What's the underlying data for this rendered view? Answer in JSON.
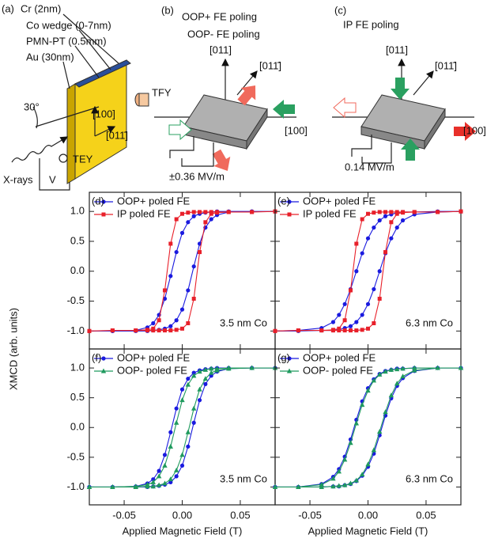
{
  "diagram": {
    "panel_a": {
      "label": "(a)",
      "layers": [
        "Cr (2nm)",
        "Co wedge (0-7nm)",
        "PMN-PT (0.5mm)",
        "Au (30nm)"
      ],
      "tfy": "TFY",
      "angle": "30°",
      "dir_100": "[100]",
      "dir_011bar": "[011̄]",
      "xrays": "X-rays",
      "voltage": "V",
      "tey": "TEY"
    },
    "panel_b": {
      "label": "(b)",
      "title_lines": [
        "OOP+ FE poling",
        "OOP- FE poling"
      ],
      "dir_011": "[011]",
      "dir_011bar": "[011̄]",
      "dir_100": "[100]",
      "field": "±0.36 MV/m"
    },
    "panel_c": {
      "label": "(c)",
      "title": "IP FE poling",
      "dir_011": "[011]",
      "dir_011bar": "[011̄]",
      "dir_100": "[100]",
      "field": "0.14 MV/m"
    }
  },
  "chart_data": [
    {
      "type": "line",
      "panel_label": "(d)",
      "annotation": "3.5 nm Co",
      "ylabel": "XMCD (arb. units)",
      "x": [
        0.08,
        0.06,
        0.04,
        0.03,
        0.025,
        0.02,
        0.015,
        0.01,
        0.005,
        0,
        -0.005,
        -0.01,
        -0.015,
        -0.02,
        -0.025,
        -0.03,
        -0.04,
        -0.06,
        -0.08,
        -0.08,
        -0.06,
        -0.04,
        -0.03,
        -0.025,
        -0.02,
        -0.015,
        -0.01,
        -0.005,
        0,
        0.005,
        0.01,
        0.015,
        0.02,
        0.025,
        0.03,
        0.04,
        0.06,
        0.08
      ],
      "series": [
        {
          "name": "OOP+ poled FE",
          "color": "#1a1adf",
          "marker": "circle",
          "values": [
            1,
            1,
            1,
            1,
            0.99,
            0.98,
            0.96,
            0.92,
            0.82,
            0.64,
            0.32,
            -0.08,
            -0.46,
            -0.73,
            -0.87,
            -0.94,
            -0.99,
            -1,
            -1,
            -1,
            -1,
            -1,
            -1,
            -0.99,
            -0.98,
            -0.96,
            -0.92,
            -0.82,
            -0.64,
            -0.32,
            0.08,
            0.46,
            0.73,
            0.87,
            0.94,
            0.99,
            1,
            1
          ]
        },
        {
          "name": "IP poled FE",
          "color": "#e8202a",
          "marker": "square",
          "values": [
            1,
            0.99,
            0.99,
            0.99,
            0.99,
            0.99,
            0.99,
            0.99,
            0.98,
            0.96,
            0.87,
            0.46,
            -0.32,
            -0.82,
            -0.96,
            -0.98,
            -0.99,
            -0.99,
            -1,
            -1,
            -0.99,
            -0.99,
            -0.99,
            -0.99,
            -0.99,
            -0.99,
            -0.99,
            -0.98,
            -0.96,
            -0.87,
            -0.46,
            0.32,
            0.82,
            0.96,
            0.98,
            0.99,
            0.99,
            1
          ]
        }
      ],
      "xlim": [
        -0.08,
        0.08
      ],
      "ylim": [
        -1.3,
        1.32
      ],
      "xticks": [
        -0.05,
        0,
        0.05
      ],
      "yticks": [
        {
          "value": -1,
          "label": "-1.0"
        },
        -0.5,
        {
          "value": 0,
          "label": "0.0"
        },
        0.5,
        {
          "value": 1,
          "label": "1.0"
        }
      ]
    },
    {
      "type": "line",
      "panel_label": "(e)",
      "annotation": "6.3 nm Co",
      "x": [
        0.08,
        0.06,
        0.04,
        0.03,
        0.025,
        0.02,
        0.015,
        0.01,
        0.005,
        0,
        -0.005,
        -0.01,
        -0.015,
        -0.02,
        -0.025,
        -0.03,
        -0.04,
        -0.06,
        -0.08,
        -0.08,
        -0.06,
        -0.04,
        -0.03,
        -0.025,
        -0.02,
        -0.015,
        -0.01,
        -0.005,
        0,
        0.005,
        0.01,
        0.015,
        0.02,
        0.025,
        0.03,
        0.04,
        0.06,
        0.08
      ],
      "series": [
        {
          "name": "OOP+ poled FE",
          "color": "#1a1adf",
          "marker": "circle",
          "values": [
            1,
            1,
            0.99,
            0.99,
            0.98,
            0.95,
            0.92,
            0.85,
            0.73,
            0.55,
            0.3,
            0,
            -0.3,
            -0.55,
            -0.73,
            -0.85,
            -0.95,
            -0.99,
            -1,
            -1,
            -1,
            -0.99,
            -0.99,
            -0.98,
            -0.95,
            -0.92,
            -0.85,
            -0.73,
            -0.55,
            -0.3,
            0,
            0.3,
            0.55,
            0.73,
            0.85,
            0.95,
            0.99,
            1
          ]
        },
        {
          "name": "IP poled FE",
          "color": "#e8202a",
          "marker": "square",
          "values": [
            1,
            0.99,
            0.99,
            0.99,
            0.99,
            0.99,
            0.99,
            0.99,
            0.98,
            0.96,
            0.87,
            0.46,
            -0.32,
            -0.82,
            -0.96,
            -0.98,
            -0.99,
            -0.99,
            -1,
            -1,
            -0.99,
            -0.99,
            -0.99,
            -0.99,
            -0.99,
            -0.99,
            -0.99,
            -0.98,
            -0.96,
            -0.87,
            -0.46,
            0.32,
            0.82,
            0.96,
            0.98,
            0.99,
            0.99,
            1
          ]
        }
      ],
      "xlim": [
        -0.08,
        0.08
      ],
      "ylim": [
        -1.3,
        1.32
      ],
      "xticks": [
        -0.05,
        0,
        0.05
      ],
      "yticks": [
        -1,
        -0.5,
        0,
        0.5,
        1
      ]
    },
    {
      "type": "line",
      "panel_label": "(f)",
      "annotation": "3.5 nm Co",
      "xlabel": "Applied Magnetic Field (T)",
      "x": [
        0.08,
        0.06,
        0.04,
        0.03,
        0.025,
        0.02,
        0.015,
        0.01,
        0.005,
        0,
        -0.005,
        -0.01,
        -0.015,
        -0.02,
        -0.025,
        -0.03,
        -0.04,
        -0.06,
        -0.08,
        -0.08,
        -0.06,
        -0.04,
        -0.03,
        -0.025,
        -0.02,
        -0.015,
        -0.01,
        -0.005,
        0,
        0.005,
        0.01,
        0.015,
        0.02,
        0.025,
        0.03,
        0.04,
        0.06,
        0.08
      ],
      "series": [
        {
          "name": "OOP+ poled FE",
          "color": "#1a1adf",
          "marker": "circle",
          "values": [
            1,
            1,
            1,
            1,
            0.99,
            0.98,
            0.96,
            0.92,
            0.82,
            0.64,
            0.32,
            -0.08,
            -0.46,
            -0.73,
            -0.87,
            -0.94,
            -0.99,
            -1,
            -1,
            -1,
            -1,
            -1,
            -1,
            -0.99,
            -0.98,
            -0.96,
            -0.92,
            -0.82,
            -0.64,
            -0.32,
            0.08,
            0.46,
            0.73,
            0.87,
            0.94,
            0.99,
            1,
            1
          ]
        },
        {
          "name": "OOP- poled FE",
          "color": "#1f9a5e",
          "marker": "triangle",
          "values": [
            1,
            1,
            1,
            0.99,
            0.99,
            0.97,
            0.94,
            0.87,
            0.72,
            0.46,
            0.08,
            -0.32,
            -0.64,
            -0.82,
            -0.92,
            -0.96,
            -0.99,
            -1,
            -1,
            -1,
            -1,
            -1,
            -0.99,
            -0.99,
            -0.97,
            -0.94,
            -0.87,
            -0.72,
            -0.46,
            -0.08,
            0.32,
            0.64,
            0.82,
            0.92,
            0.96,
            0.99,
            1,
            1
          ]
        }
      ],
      "xlim": [
        -0.08,
        0.08
      ],
      "ylim": [
        -1.3,
        1.32
      ],
      "xticks": [
        -0.05,
        {
          "value": 0,
          "label": "0.00"
        },
        0.05
      ],
      "yticks": [
        {
          "value": -1,
          "label": "-1.0"
        },
        -0.5,
        {
          "value": 0,
          "label": "0.0"
        },
        0.5,
        {
          "value": 1,
          "label": "1.0"
        }
      ]
    },
    {
      "type": "line",
      "panel_label": "(g)",
      "annotation": "6.3 nm Co",
      "xlabel": "Applied Magnetic Field (T)",
      "x": [
        0.08,
        0.06,
        0.04,
        0.03,
        0.025,
        0.02,
        0.015,
        0.01,
        0.005,
        0,
        -0.005,
        -0.01,
        -0.015,
        -0.02,
        -0.025,
        -0.03,
        -0.04,
        -0.06,
        -0.08,
        -0.08,
        -0.06,
        -0.04,
        -0.03,
        -0.025,
        -0.02,
        -0.015,
        -0.01,
        -0.005,
        0,
        0.005,
        0.01,
        0.015,
        0.02,
        0.025,
        0.03,
        0.04,
        0.06,
        0.08
      ],
      "series": [
        {
          "name": "OOP+ poled FE",
          "color": "#1a1adf",
          "marker": "circle",
          "values": [
            1,
            1,
            1,
            0.99,
            0.99,
            0.97,
            0.95,
            0.9,
            0.81,
            0.66,
            0.44,
            0.13,
            -0.2,
            -0.49,
            -0.7,
            -0.83,
            -0.95,
            -1,
            -1,
            -1,
            -1,
            -1,
            -0.99,
            -0.99,
            -0.97,
            -0.95,
            -0.9,
            -0.81,
            -0.66,
            -0.44,
            -0.13,
            0.2,
            0.49,
            0.7,
            0.83,
            0.95,
            1,
            1
          ]
        },
        {
          "name": "OOP- poled FE",
          "color": "#1f9a5e",
          "marker": "triangle",
          "values": [
            1,
            1,
            1,
            0.99,
            0.98,
            0.97,
            0.94,
            0.89,
            0.79,
            0.62,
            0.38,
            0.07,
            -0.26,
            -0.54,
            -0.74,
            -0.86,
            -0.96,
            -1,
            -1,
            -1,
            -1,
            -1,
            -0.99,
            -0.98,
            -0.97,
            -0.94,
            -0.89,
            -0.79,
            -0.62,
            -0.38,
            -0.07,
            0.26,
            0.54,
            0.74,
            0.86,
            0.96,
            1,
            1
          ]
        }
      ],
      "xlim": [
        -0.08,
        0.08
      ],
      "ylim": [
        -1.3,
        1.32
      ],
      "xticks": [
        -0.05,
        {
          "value": 0,
          "label": "0.00"
        },
        0.05
      ],
      "yticks": [
        -1,
        -0.5,
        0,
        0.5,
        1
      ]
    }
  ]
}
